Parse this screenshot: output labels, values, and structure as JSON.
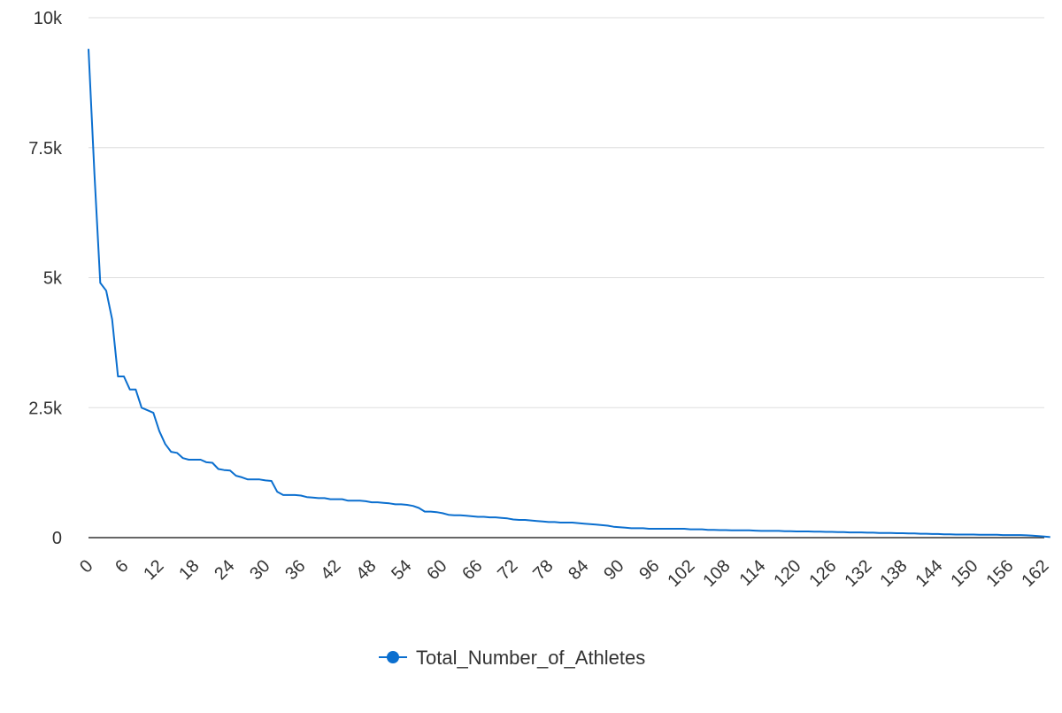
{
  "chart_data": {
    "type": "line",
    "title": "",
    "xlabel": "",
    "ylabel": "",
    "x_start": 0,
    "x_step": 1,
    "xlim": [
      0,
      162
    ],
    "ylim": [
      0,
      10000
    ],
    "x_tick_labels": [
      "0",
      "6",
      "12",
      "18",
      "24",
      "30",
      "36",
      "42",
      "48",
      "54",
      "60",
      "66",
      "72",
      "78",
      "84",
      "90",
      "96",
      "102",
      "108",
      "114",
      "120",
      "126",
      "132",
      "138",
      "144",
      "150",
      "156",
      "162"
    ],
    "y_ticks": [
      0,
      2500,
      5000,
      7500,
      10000
    ],
    "y_tick_labels": [
      "0",
      "2.5k",
      "5k",
      "7.5k",
      "10k"
    ],
    "grid": true,
    "legend_position": "bottom",
    "series": [
      {
        "name": "Total_Number_of_Athletes",
        "color": "#0b6fcf",
        "values": [
          9400,
          7000,
          4900,
          4750,
          4200,
          3100,
          3100,
          2850,
          2850,
          2500,
          2450,
          2400,
          2050,
          1800,
          1650,
          1630,
          1530,
          1500,
          1500,
          1500,
          1450,
          1440,
          1320,
          1300,
          1290,
          1190,
          1160,
          1120,
          1120,
          1120,
          1100,
          1090,
          880,
          820,
          820,
          820,
          810,
          780,
          770,
          760,
          760,
          740,
          740,
          740,
          710,
          710,
          710,
          700,
          680,
          680,
          670,
          660,
          640,
          640,
          630,
          610,
          570,
          500,
          500,
          490,
          470,
          440,
          430,
          430,
          420,
          410,
          400,
          400,
          390,
          390,
          380,
          370,
          350,
          340,
          340,
          330,
          320,
          310,
          300,
          300,
          290,
          290,
          290,
          280,
          270,
          260,
          250,
          240,
          230,
          210,
          200,
          190,
          180,
          180,
          180,
          170,
          170,
          170,
          170,
          170,
          170,
          170,
          160,
          160,
          160,
          150,
          150,
          145,
          145,
          140,
          140,
          140,
          140,
          135,
          130,
          130,
          130,
          130,
          125,
          125,
          120,
          120,
          120,
          115,
          115,
          110,
          110,
          105,
          105,
          100,
          100,
          100,
          95,
          95,
          90,
          90,
          90,
          85,
          85,
          80,
          80,
          75,
          75,
          70,
          70,
          65,
          65,
          60,
          60,
          60,
          60,
          55,
          55,
          55,
          55,
          50,
          50,
          50,
          50,
          45,
          40,
          30,
          20,
          10
        ]
      }
    ]
  }
}
